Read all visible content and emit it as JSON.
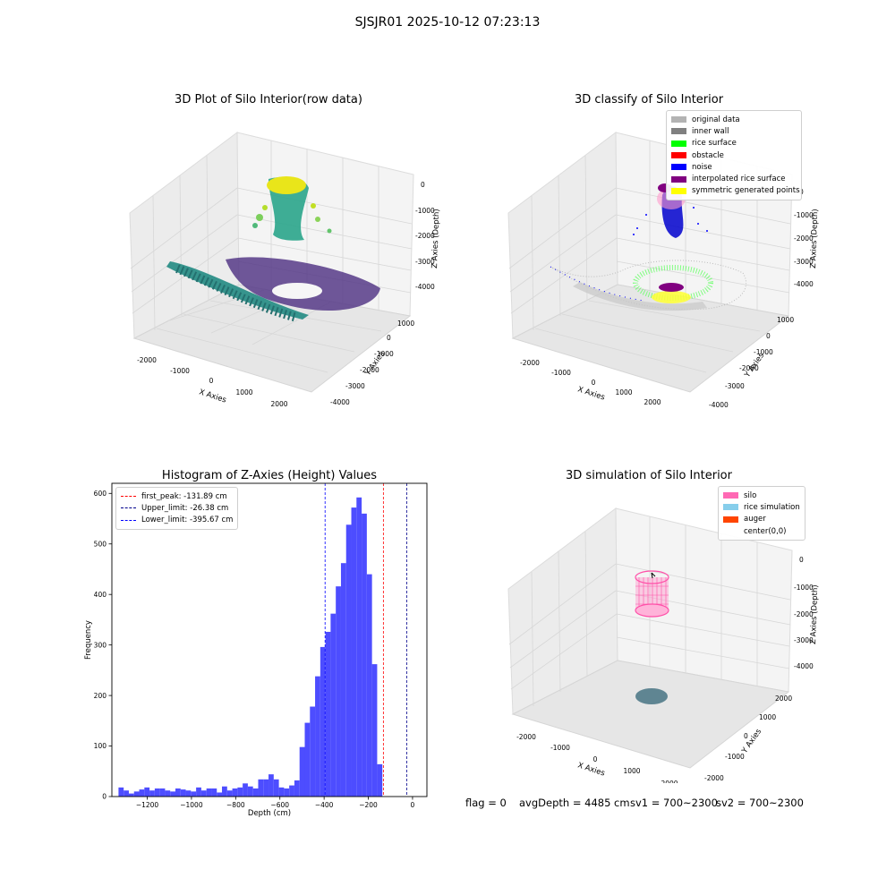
{
  "page": {
    "suptitle": "SJSJR01 2025-10-12 07:23:13"
  },
  "panels": {
    "raw": {
      "title": "3D Plot of Silo Interior(row data)",
      "x_ticks": [
        "-2000",
        "-1000",
        "0",
        "1000",
        "2000"
      ],
      "y_ticks": [
        "1000",
        "0",
        "-1000",
        "-2000",
        "-3000",
        "-4000"
      ],
      "z_ticks": [
        "0",
        "-1000",
        "-2000",
        "-3000",
        "-4000"
      ],
      "x_label": "X Axies",
      "y_label": "Y Axies",
      "z_label": "Z Axies (Depth)"
    },
    "classify": {
      "title": "3D classify of Silo Interior",
      "x_ticks": [
        "-2000",
        "-1000",
        "0",
        "1000",
        "2000"
      ],
      "y_ticks": [
        "1000",
        "0",
        "-1000",
        "-2000",
        "-3000",
        "-4000"
      ],
      "z_ticks": [
        "0",
        "-1000",
        "-2000",
        "-3000",
        "-4000"
      ],
      "x_label": "X Axies",
      "y_label": "Y Axies",
      "z_label": "Z Axies (Depth)",
      "legend": [
        {
          "label": "original data",
          "color": "#b3b3b3"
        },
        {
          "label": "inner wall",
          "color": "#808080"
        },
        {
          "label": "rice surface",
          "color": "#00ff00"
        },
        {
          "label": "obstacle",
          "color": "#ff0000"
        },
        {
          "label": "noise",
          "color": "#0000ff"
        },
        {
          "label": "interpolated rice surface",
          "color": "#800080"
        },
        {
          "label": "symmetric generated points",
          "color": "#ffff00"
        }
      ]
    },
    "simulation": {
      "title": "3D simulation of Silo Interior",
      "x_ticks": [
        "-2000",
        "-1000",
        "0",
        "1000",
        "2000"
      ],
      "y_ticks": [
        "2000",
        "1000",
        "0",
        "-1000",
        "-2000"
      ],
      "z_ticks": [
        "0",
        "-1000",
        "-2000",
        "-3000",
        "-4000"
      ],
      "x_label": "X Axies",
      "y_label": "Y Axies",
      "z_label": "Z Axies (Depth)",
      "legend": [
        {
          "label": "silo",
          "color": "#ff69b4"
        },
        {
          "label": "rice simulation",
          "color": "#87ceeb"
        },
        {
          "label": "auger",
          "color": "#ff4500"
        },
        {
          "label": "center(0,0)",
          "color": ""
        }
      ]
    }
  },
  "chart_data": {
    "type": "bar",
    "title": "Histogram of Z-Axies (Height) Values",
    "xlabel": "Depth (cm)",
    "ylabel": "Frequency",
    "xlim": [
      -1360,
      65
    ],
    "ylim": [
      0,
      620
    ],
    "x_ticks": [
      -1200,
      -1000,
      -800,
      -600,
      -400,
      -200,
      0
    ],
    "y_ticks": [
      0,
      100,
      200,
      300,
      400,
      500,
      600
    ],
    "bin_start": -1330,
    "bin_width": 23.4,
    "values": [
      18,
      12,
      6,
      10,
      14,
      18,
      12,
      16,
      16,
      12,
      10,
      16,
      14,
      12,
      10,
      18,
      12,
      16,
      16,
      8,
      20,
      12,
      16,
      18,
      26,
      20,
      16,
      34,
      34,
      44,
      34,
      18,
      16,
      22,
      32,
      98,
      146,
      178,
      238,
      296,
      326,
      362,
      416,
      462,
      538,
      572,
      592,
      560,
      440,
      262,
      64
    ],
    "bar_color": "#4d4dff",
    "vlines": [
      {
        "name": "first_peak: -131.89 cm",
        "value": -131.89,
        "color": "#ff0000"
      },
      {
        "name": "Upper_limit: -26.38 cm",
        "value": -26.38,
        "color": "#00008b"
      },
      {
        "name": "Lower_limit: -395.67 cm",
        "value": -395.67,
        "color": "#0000ff"
      }
    ],
    "legend_position": "top-left"
  },
  "status": {
    "flag": "flag = 0",
    "avg": "avgDepth = 4485 cm",
    "sv1": "sv1 = 700~2300",
    "sv2": "sv2 = 700~2300"
  }
}
